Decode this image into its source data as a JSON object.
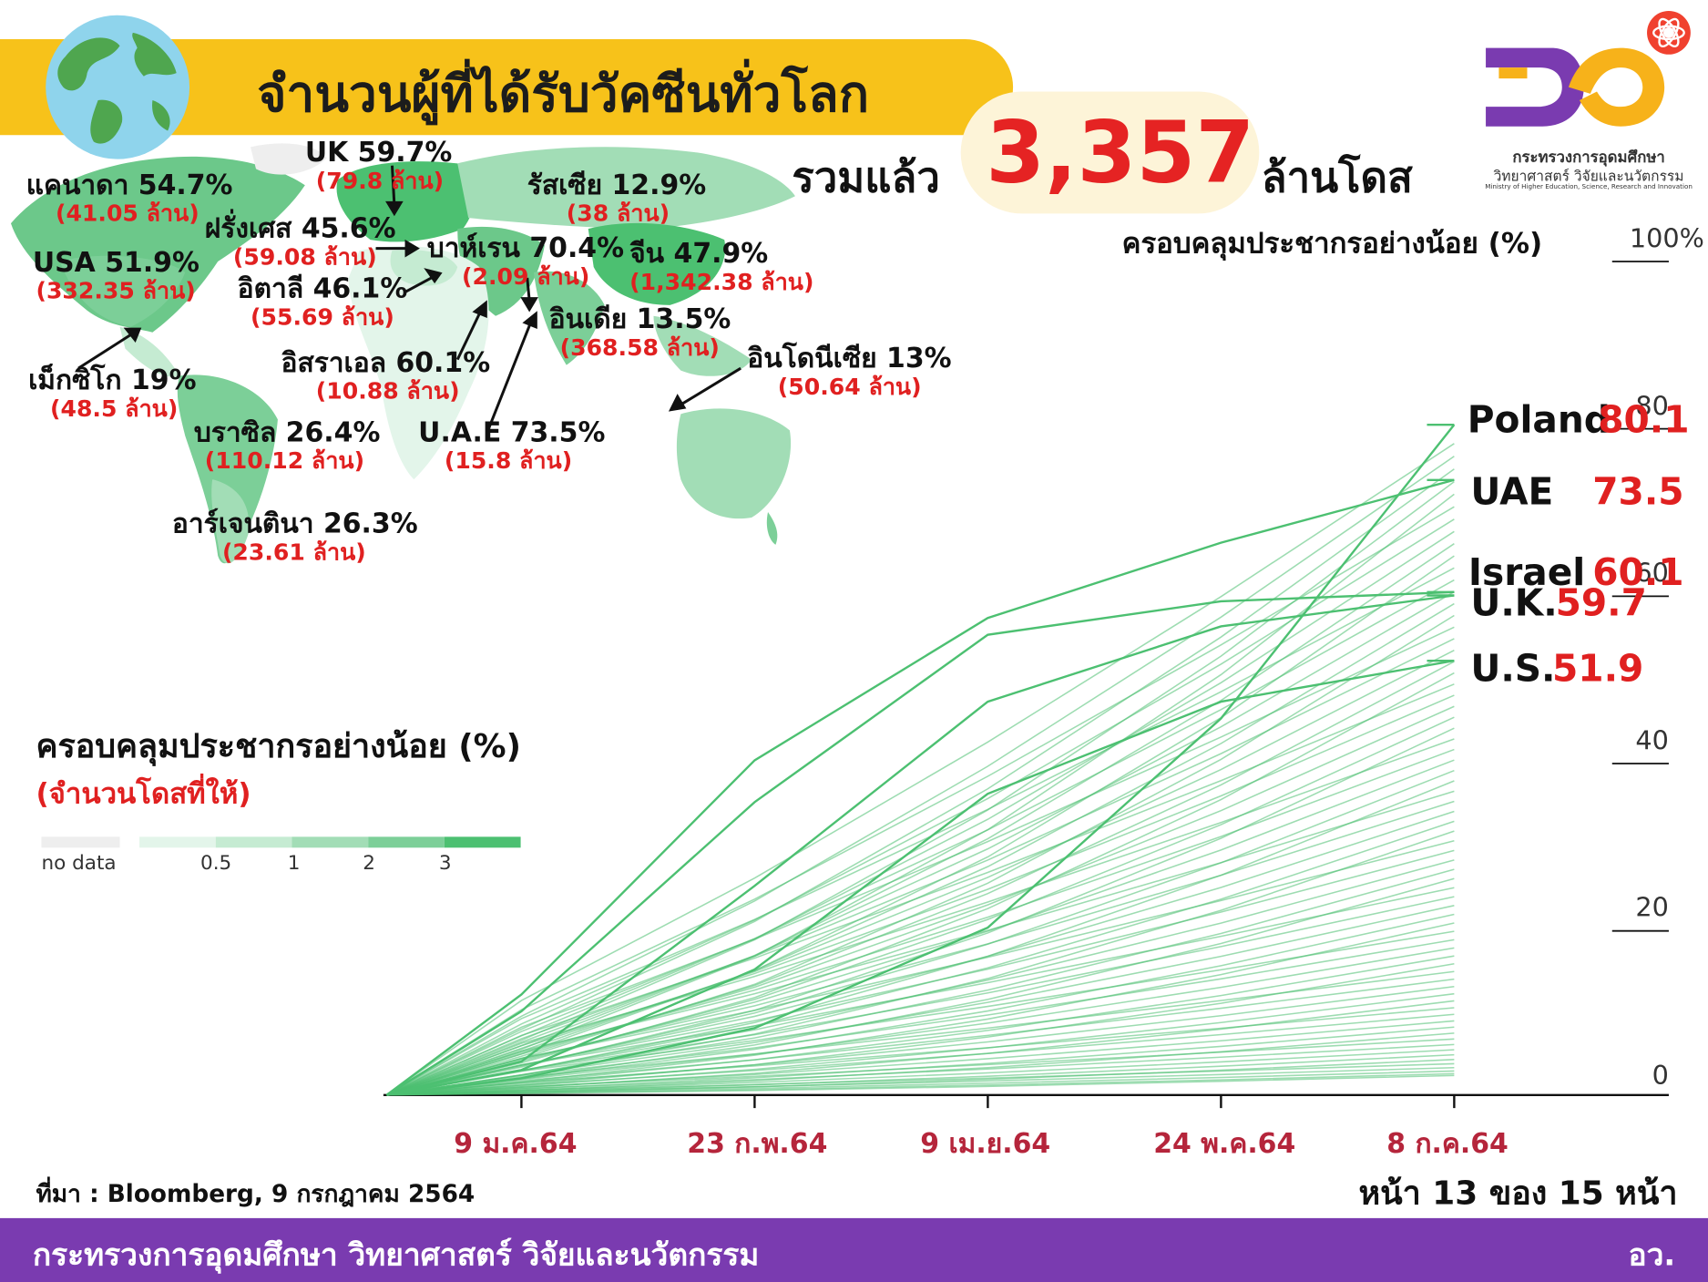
{
  "header": {
    "title": "จำนวนผู้ที่ได้รับวัคซีนทั่วโลก",
    "total_prefix": "รวมแล้ว",
    "total_value": "3,357",
    "total_suffix": "ล้านโดส"
  },
  "logo": {
    "caption_th": "กระทรวงการอุดมศึกษา",
    "caption_th2": "วิทยาศาสตร์ วิจัยและนวัตกรรม",
    "caption_en": "Ministry of Higher Education, Science, Research and Innovation"
  },
  "map_labels": [
    {
      "country": "แคนาดา 54.7%",
      "doses": "(41.05 ล้าน)"
    },
    {
      "country": "UK 59.7%",
      "doses": "(79.8 ล้าน)"
    },
    {
      "country": "รัสเซีย 12.9%",
      "doses": "(38 ล้าน)"
    },
    {
      "country": "ฝรั่งเศส 45.6%",
      "doses": "(59.08 ล้าน)"
    },
    {
      "country": "USA 51.9%",
      "doses": "(332.35 ล้าน)"
    },
    {
      "country": "อิตาลี 46.1%",
      "doses": "(55.69 ล้าน)"
    },
    {
      "country": "บาห์เรน 70.4%",
      "doses": "(2.09 ล้าน)"
    },
    {
      "country": "จีน 47.9%",
      "doses": "(1,342.38 ล้าน)"
    },
    {
      "country": "อินเดีย 13.5%",
      "doses": "(368.58 ล้าน)"
    },
    {
      "country": "อิสราเอล 60.1%",
      "doses": "(10.88 ล้าน)"
    },
    {
      "country": "อินโดนีเซีย 13%",
      "doses": "(50.64 ล้าน)"
    },
    {
      "country": "เม็กซิโก 19%",
      "doses": "(48.5 ล้าน)"
    },
    {
      "country": "บราซิล 26.4%",
      "doses": "(110.12 ล้าน)"
    },
    {
      "country": "U.A.E 73.5%",
      "doses": "(15.8 ล้าน)"
    },
    {
      "country": "อาร์เจนตินา 26.3%",
      "doses": "(23.61 ล้าน)"
    }
  ],
  "map_legend": {
    "title": "ครอบคลุมประชากรอย่างน้อย (%)",
    "subtitle": "(จำนวนโดสที่ให้)",
    "no_data": "no data",
    "breaks": [
      "0.5",
      "1",
      "2",
      "3"
    ],
    "colors": [
      "#eeeeee",
      "#e3f5ea",
      "#c5ebd2",
      "#a2ddb6",
      "#7ccf98",
      "#4cc071"
    ]
  },
  "chart_title": "ครอบคลุมประชากรอย่างน้อย (%)",
  "chart_data": {
    "type": "line",
    "ylabel": "ครอบคลุมประชากรอย่างน้อย (%)",
    "ylim": [
      0,
      100
    ],
    "yticks": [
      "0",
      "20",
      "40",
      "60",
      "80",
      "100%"
    ],
    "xticks": [
      "9 ม.ค.64",
      "23 ก.พ.64",
      "9 เม.ย.64",
      "24 พ.ค.64",
      "8 ก.ค.64"
    ],
    "x": [
      "2020-12-14",
      "2021-01-09",
      "2021-02-23",
      "2021-04-09",
      "2021-05-24",
      "2021-07-08"
    ],
    "color": "#4cc071",
    "series": [
      {
        "name": "Poland",
        "values": [
          0,
          2,
          8,
          20,
          45,
          80.1
        ]
      },
      {
        "name": "UAE",
        "values": [
          0,
          12,
          40,
          57,
          66,
          73.5
        ]
      },
      {
        "name": "Israel",
        "values": [
          0,
          10,
          35,
          55,
          59,
          60.1
        ]
      },
      {
        "name": "U.K.",
        "values": [
          0,
          4,
          25,
          47,
          56,
          59.7
        ]
      },
      {
        "name": "U.S.",
        "values": [
          0,
          3,
          15,
          36,
          47,
          51.9
        ]
      }
    ],
    "callouts": [
      {
        "name": "Poland",
        "value": "80.1"
      },
      {
        "name": "UAE",
        "value": "73.5"
      },
      {
        "name": "Israel",
        "value": "60.1"
      },
      {
        "name": "U.K.",
        "value": "59.7"
      },
      {
        "name": "U.S.",
        "value": "51.9"
      }
    ]
  },
  "footer": {
    "source": "ที่มา : Bloomberg, 9 กรกฎาคม 2564",
    "page": "หน้า 13 ของ 15 หน้า",
    "ministry": "กระทรวงการอุดมศึกษา วิทยาศาสตร์ วิจัยและนวัตกรรม",
    "abbr": "อว."
  }
}
